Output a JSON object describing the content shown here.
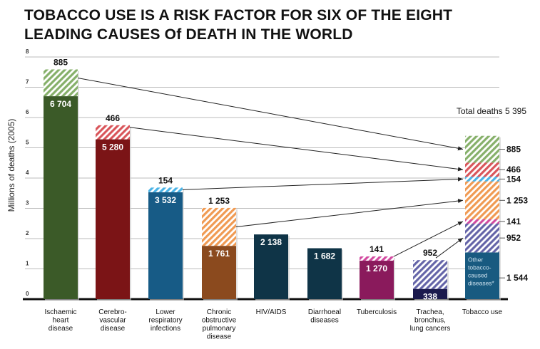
{
  "title_lines": [
    "TOBACCO USE IS A RISK FACTOR FOR SIX OF THE EIGHT",
    "LEADING CAUSES Of DEATH IN THE WORLD"
  ],
  "chart_data": {
    "type": "bar",
    "stacked": true,
    "ylabel": "Millions of deaths (2005)",
    "ylim": [
      0,
      8
    ],
    "yticks": [
      0,
      1,
      2,
      3,
      4,
      5,
      6,
      7,
      8
    ],
    "grid": true,
    "units_note": "segment values in thousands",
    "categories": [
      [
        "Ischaemic",
        "heart",
        "disease"
      ],
      [
        "Cerebro-",
        "vascular",
        "disease"
      ],
      [
        "Lower",
        "respiratory",
        "infections"
      ],
      [
        "Chronic",
        "obstructive",
        "pulmonary",
        "disease"
      ],
      [
        "HIV/AIDS"
      ],
      [
        "Diarrhoeal",
        "diseases"
      ],
      [
        "Tuberculosis"
      ],
      [
        "Trachea,",
        "bronchus,",
        "lung cancers"
      ]
    ],
    "bars": [
      {
        "other": 6704,
        "tobacco": 885,
        "other_label": "6 704",
        "tobacco_label": "885",
        "color": "#3b5a28",
        "hatch": "#86b06a"
      },
      {
        "other": 5280,
        "tobacco": 466,
        "other_label": "5 280",
        "tobacco_label": "466",
        "color": "#7b1416",
        "hatch": "#d9555a"
      },
      {
        "other": 3532,
        "tobacco": 154,
        "other_label": "3 532",
        "tobacco_label": "154",
        "color": "#175b86",
        "hatch": "#49b3e6"
      },
      {
        "other": 1761,
        "tobacco": 1253,
        "other_label": "1 761",
        "tobacco_label": "1 253",
        "color": "#8b4a1e",
        "hatch": "#f09a52"
      },
      {
        "other": 2138,
        "tobacco": 0,
        "other_label": "2 138",
        "tobacco_label": "",
        "color": "#0f3447",
        "hatch": "#0f3447"
      },
      {
        "other": 1682,
        "tobacco": 0,
        "other_label": "1 682",
        "tobacco_label": "",
        "color": "#0f3447",
        "hatch": "#0f3447"
      },
      {
        "other": 1270,
        "tobacco": 141,
        "other_label": "1 270",
        "tobacco_label": "141",
        "color": "#8a1a5c",
        "hatch": "#d24aa0"
      },
      {
        "other": 338,
        "tobacco": 952,
        "other_label": "338",
        "tobacco_label": "952",
        "color": "#1b1a4d",
        "hatch": "#6464a8"
      }
    ],
    "tobacco_bar": {
      "label": "Tobacco use",
      "total_label": "Total deaths 5 395",
      "total": 5395,
      "base": {
        "value": 1544,
        "label": "1 544",
        "text_lines": [
          "Other",
          "tobacco-",
          "caused",
          "diseases*"
        ],
        "color": "#185a80"
      },
      "segments_bottom_up": [
        {
          "from_bar": 7,
          "value": 952,
          "label": "952"
        },
        {
          "from_bar": 6,
          "value": 141,
          "label": "141"
        },
        {
          "from_bar": 3,
          "value": 1253,
          "label": "1 253"
        },
        {
          "from_bar": 2,
          "value": 154,
          "label": "154"
        },
        {
          "from_bar": 1,
          "value": 466,
          "label": "466"
        },
        {
          "from_bar": 0,
          "value": 885,
          "label": "885"
        }
      ]
    }
  }
}
